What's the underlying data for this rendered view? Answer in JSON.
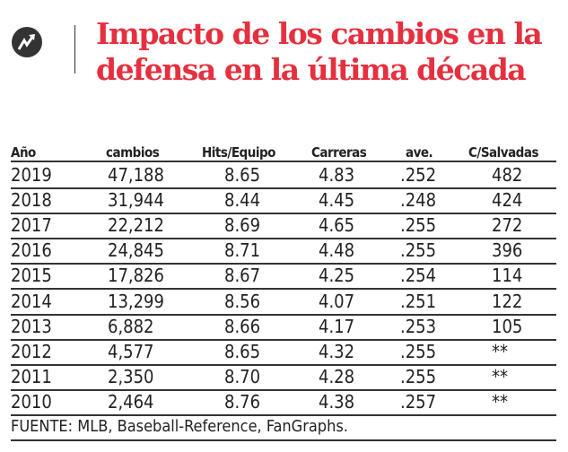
{
  "title": "Impacto de los cambios en la defensa en la última década",
  "icon": "trending-arrow-icon",
  "colors": {
    "title": "#e5303f",
    "icon_bg": "#333333"
  },
  "chart_data": {
    "type": "table",
    "title": "Impacto de los cambios en la defensa en la última década",
    "columns": [
      "Año",
      "cambios",
      "Hits/Equipo",
      "Carreras",
      "ave.",
      "C/Salvadas"
    ],
    "rows": [
      [
        "2019",
        "47,188",
        "8.65",
        "4.83",
        ".252",
        "482"
      ],
      [
        "2018",
        "31,944",
        "8.44",
        "4.45",
        ".248",
        "424"
      ],
      [
        "2017",
        "22,212",
        "8.69",
        "4.65",
        ".255",
        "272"
      ],
      [
        "2016",
        "24,845",
        "8.71",
        "4.48",
        ".255",
        "396"
      ],
      [
        "2015",
        "17,826",
        "8.67",
        "4.25",
        ".254",
        "114"
      ],
      [
        "2014",
        "13,299",
        "8.56",
        "4.07",
        ".251",
        "122"
      ],
      [
        "2013",
        "6,882",
        "8.66",
        "4.17",
        ".253",
        "105"
      ],
      [
        "2012",
        "4,577",
        "8.65",
        "4.32",
        ".255",
        "**"
      ],
      [
        "2011",
        "2,350",
        "8.70",
        "4.28",
        ".255",
        "**"
      ],
      [
        "2010",
        "2,464",
        "8.76",
        "4.38",
        ".257",
        "**"
      ]
    ],
    "source": "FUENTE: MLB, Baseball-Reference, FanGraphs."
  }
}
